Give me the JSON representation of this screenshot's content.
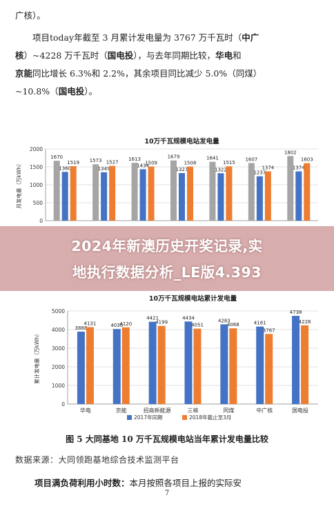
{
  "text": {
    "line0": "广核）。",
    "p2_a": "项目today年截至 3 月累计发电量为 3767 万千瓦时（",
    "p2_b": "中广",
    "p2_c": "核",
    "p2_d": "）~4228 万千瓦时（",
    "p2_e": "国电投",
    "p2_f": "），与去年同期比较，",
    "p2_g": "华电",
    "p2_h": "和",
    "p2_i": "京能",
    "p2_j": "同比增长 6.3%和 2.2%，其余项目同比减少 5.0%（同煤）",
    "p2_k": "~10.8%（",
    "p2_l": "国电投",
    "p2_m": "）。"
  },
  "overlay": {
    "line1": "2024年新澳历史开奖记录,实",
    "line2": "地执行数据分析_LE版4.393"
  },
  "caption": {
    "figure": "图 5 大同基地 10 万千瓦规模电站当年累计发电量比较",
    "source": "数据来源：大同领跑基地综合技术监测平台",
    "bottom_bold": "项目满负荷利用小时数：",
    "bottom_rest": "本月按照各项目上报的实际安",
    "page": "7"
  },
  "colors": {
    "gray": "#a5a5a5",
    "blue": "#4472c4",
    "orange": "#ed7d31"
  },
  "chart_data": [
    {
      "type": "bar",
      "title": "10万千瓦规模电站发电量",
      "ylabel": "月发电量（万kWh）",
      "ylim": [
        0,
        2000
      ],
      "yticks": [
        0,
        500,
        1000,
        1500,
        2000
      ],
      "series": [
        {
          "values": [
            1670,
            1573,
            1613,
            1679,
            1641,
            1607,
            1802
          ]
        },
        {
          "values": [
            1360,
            1349,
            1434,
            1327,
            1322,
            1237,
            1374
          ]
        },
        {
          "values": [
            1519,
            1527,
            1509,
            1508,
            1515,
            1374,
            1603
          ]
        }
      ]
    },
    {
      "type": "bar",
      "title": "10万千瓦规模电站累计发电量",
      "ylabel": "累计发电量（万kWh）",
      "ylim": [
        0,
        5000
      ],
      "yticks": [
        0,
        1000,
        2000,
        3000,
        4000,
        5000
      ],
      "categories": [
        "华电",
        "京能",
        "招商新能源",
        "三峡",
        "同煤",
        "中广核",
        "国电投"
      ],
      "series": [
        {
          "name": "2017年同期",
          "values": [
            3888,
            4030,
            4421,
            4434,
            4283,
            4161,
            4738
          ]
        },
        {
          "name": "2018年截止至3月",
          "values": [
            4131,
            4120,
            4199,
            4051,
            4068,
            3767,
            4228
          ]
        }
      ],
      "legend": "bottom"
    }
  ]
}
